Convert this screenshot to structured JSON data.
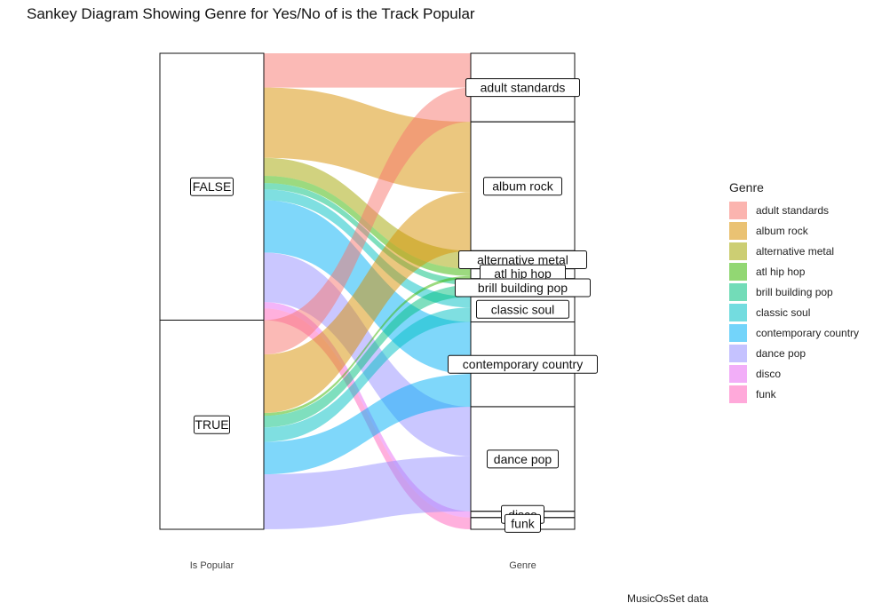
{
  "chart_data": {
    "type": "sankey",
    "title": "Sankey Diagram Showing Genre for Yes/No of is the Track Popular",
    "axes": [
      "Is Popular",
      "Genre"
    ],
    "legend_title": "Genre",
    "legend_position": "right",
    "caption": "MusicOsSet data",
    "popularity": [
      "FALSE",
      "TRUE"
    ],
    "genres": [
      "adult standards",
      "album rock",
      "alternative metal",
      "atl hip hop",
      "brill building pop",
      "classic soul",
      "contemporary country",
      "dance pop",
      "disco",
      "funk"
    ],
    "colors": [
      "#F8766D",
      "#D89000",
      "#A3A500",
      "#39B600",
      "#00BF7D",
      "#00BFC4",
      "#00B0F6",
      "#9590FF",
      "#E76BF3",
      "#FF62BC"
    ],
    "flows": [
      {
        "popular": "FALSE",
        "genre": "adult standards",
        "value": 38
      },
      {
        "popular": "FALSE",
        "genre": "album rock",
        "value": 78
      },
      {
        "popular": "FALSE",
        "genre": "alternative metal",
        "value": 20
      },
      {
        "popular": "FALSE",
        "genre": "atl hip hop",
        "value": 8
      },
      {
        "popular": "FALSE",
        "genre": "brill building pop",
        "value": 7
      },
      {
        "popular": "FALSE",
        "genre": "classic soul",
        "value": 12
      },
      {
        "popular": "FALSE",
        "genre": "contemporary country",
        "value": 58
      },
      {
        "popular": "FALSE",
        "genre": "dance pop",
        "value": 55
      },
      {
        "popular": "FALSE",
        "genre": "disco",
        "value": 7
      },
      {
        "popular": "FALSE",
        "genre": "funk",
        "value": 13
      },
      {
        "popular": "TRUE",
        "genre": "adult standards",
        "value": 38
      },
      {
        "popular": "TRUE",
        "genre": "album rock",
        "value": 65
      },
      {
        "popular": "TRUE",
        "genre": "alternative metal",
        "value": 0
      },
      {
        "popular": "TRUE",
        "genre": "atl hip hop",
        "value": 3
      },
      {
        "popular": "TRUE",
        "genre": "brill building pop",
        "value": 13
      },
      {
        "popular": "TRUE",
        "genre": "classic soul",
        "value": 16
      },
      {
        "popular": "TRUE",
        "genre": "contemporary country",
        "value": 36
      },
      {
        "popular": "TRUE",
        "genre": "dance pop",
        "value": 61
      },
      {
        "popular": "TRUE",
        "genre": "disco",
        "value": 0
      },
      {
        "popular": "TRUE",
        "genre": "funk",
        "value": 0
      }
    ]
  }
}
